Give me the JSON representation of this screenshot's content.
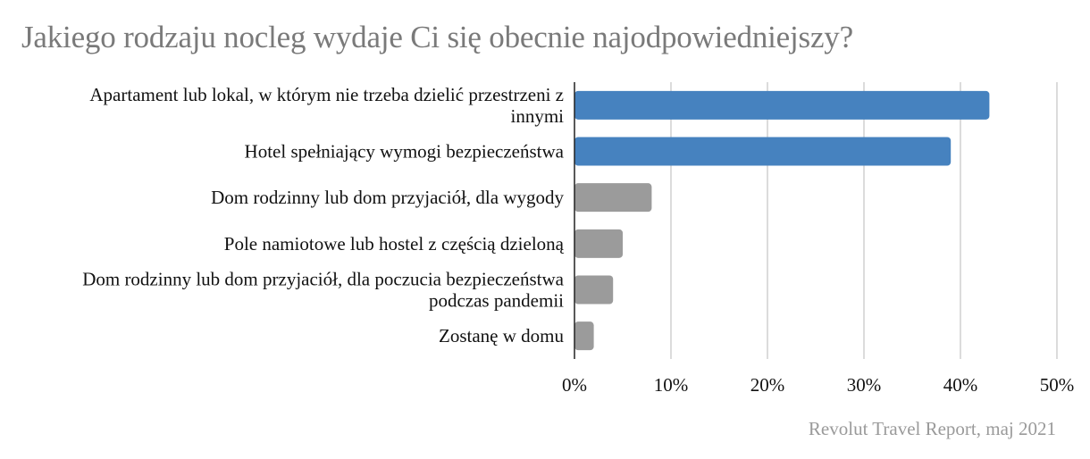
{
  "title": "Jakiego rodzaju nocleg wydaje Ci się obecnie najodpowiedniejszy?",
  "source": "Revolut Travel Report, maj 2021",
  "colors": {
    "highlight": "#4682bf",
    "other": "#9b9b9b",
    "grid": "#c8c8c8",
    "axis": "#222222",
    "title": "#7a7a7a",
    "source": "#9a9a9a"
  },
  "chart_data": {
    "type": "bar",
    "orientation": "horizontal",
    "title": "Jakiego rodzaju nocleg wydaje Ci się obecnie najodpowiedniejszy?",
    "categories": [
      [
        "Apartament lub lokal, w którym nie trzeba dzielić przestrzeni z",
        "innymi"
      ],
      [
        "Hotel spełniający wymogi bezpieczeństwa"
      ],
      [
        "Dom rodzinny lub dom przyjaciół, dla wygody"
      ],
      [
        "Pole namiotowe lub hostel z częścią dzieloną"
      ],
      [
        "Dom rodzinny lub dom przyjaciół, dla poczucia bezpieczeństwa",
        "podczas pandemii"
      ],
      [
        "Zostanę w domu"
      ]
    ],
    "values": [
      43,
      39,
      8,
      5,
      4,
      2
    ],
    "highlighted": [
      true,
      true,
      false,
      false,
      false,
      false
    ],
    "xlim": [
      0,
      50
    ],
    "ticks": [
      0,
      10,
      20,
      30,
      40,
      50
    ],
    "tick_labels": [
      "0%",
      "10%",
      "20%",
      "30%",
      "40%",
      "50%"
    ],
    "xlabel": "",
    "ylabel": "",
    "grid": true,
    "legend": "none"
  }
}
